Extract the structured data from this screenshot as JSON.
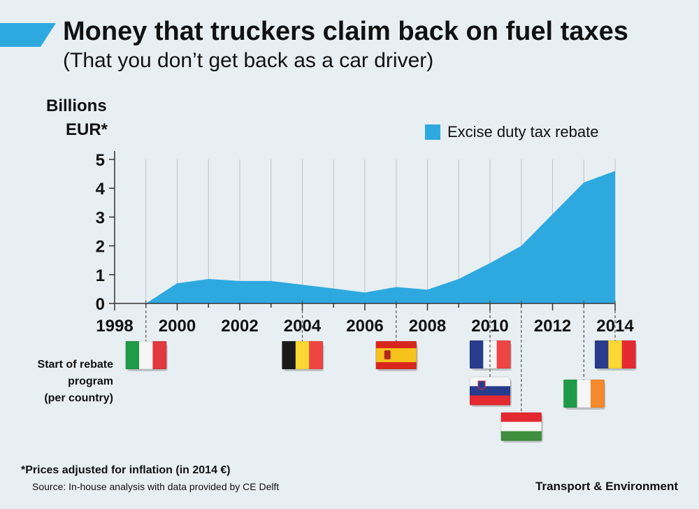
{
  "title": "Money that truckers claim back on fuel taxes",
  "subtitle": "(That you don’t get back as a car driver)",
  "ylabel_line1": "Billions",
  "ylabel_line2": "EUR*",
  "legend_label": "Excise duty tax rebate",
  "program_label_lines": [
    "Start of rebate",
    "program",
    "(per country)"
  ],
  "footnote": "*Prices adjusted for inflation (in 2014 €)",
  "source": "Source: In-house analysis with data provided by CE Delft",
  "brand": "Transport & Environment",
  "colors": {
    "area": "#2ea9e0",
    "accent": "#2ea9e0",
    "background": "#e8eff2",
    "grid": "#b9c4c9"
  },
  "chart_data": {
    "type": "area",
    "title": "Money that truckers claim back on fuel taxes",
    "subtitle": "(That you don’t get back as a car driver)",
    "ylabel": "Billions EUR*",
    "xlabel": "",
    "xlim": [
      1998,
      2014
    ],
    "ylim": [
      0,
      5
    ],
    "x_ticks": [
      1998,
      2000,
      2002,
      2004,
      2006,
      2008,
      2010,
      2012,
      2014
    ],
    "y_ticks": [
      0,
      1,
      2,
      3,
      4,
      5
    ],
    "grid": "vertical",
    "legend_position": "top-right",
    "series": [
      {
        "name": "Excise duty tax rebate",
        "color": "#2ea9e0",
        "x": [
          1999,
          2000,
          2001,
          2002,
          2003,
          2004,
          2005,
          2006,
          2007,
          2008,
          2009,
          2010,
          2011,
          2012,
          2013,
          2014
        ],
        "y": [
          0,
          0.7,
          0.85,
          0.78,
          0.78,
          0.65,
          0.52,
          0.38,
          0.57,
          0.48,
          0.85,
          1.4,
          2.0,
          3.1,
          4.2,
          4.6
        ]
      }
    ],
    "rebate_program_starts": [
      {
        "country": "Italy",
        "flag": "italy-flag",
        "year": 1999
      },
      {
        "country": "Belgium",
        "flag": "belgium-flag",
        "year": 2004
      },
      {
        "country": "Spain",
        "flag": "spain-flag",
        "year": 2007
      },
      {
        "country": "France",
        "flag": "france-flag",
        "year": 2010
      },
      {
        "country": "Slovenia",
        "flag": "slovenia-flag",
        "year": 2010
      },
      {
        "country": "Hungary",
        "flag": "hungary-flag",
        "year": 2011
      },
      {
        "country": "Ireland",
        "flag": "ireland-flag",
        "year": 2013
      },
      {
        "country": "Romania",
        "flag": "romania-flag",
        "year": 2014
      }
    ]
  }
}
